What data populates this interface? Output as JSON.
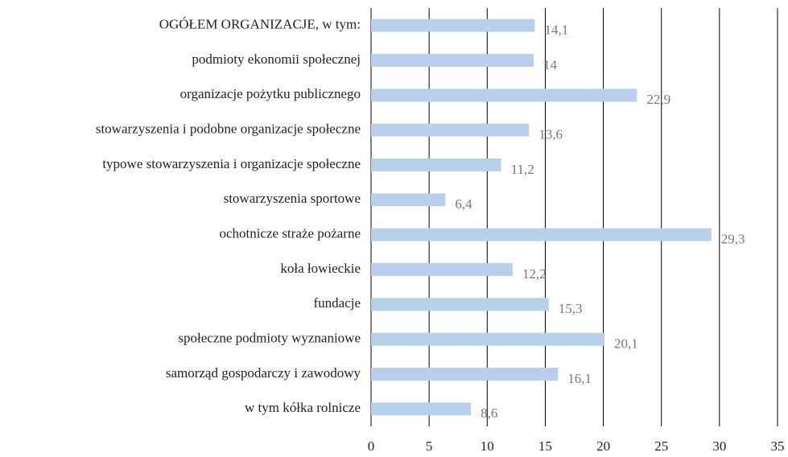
{
  "chart_data": {
    "type": "bar",
    "orientation": "horizontal",
    "categories": [
      "OGÓŁEM ORGANIZACJE, w tym:",
      "podmioty ekonomii społecznej",
      "organizacje pożytku publicznego",
      "stowarzyszenia i podobne organizacje społeczne",
      "typowe stowarzyszenia i organizacje społeczne",
      "stowarzyszenia sportowe",
      "ochotnicze straże pożarne",
      "koła łowieckie",
      "fundacje",
      "społeczne podmioty wyznaniowe",
      "samorząd gospodarczy i zawodowy",
      "w tym kółka rolnicze"
    ],
    "values": [
      14.1,
      14,
      22.9,
      13.6,
      11.2,
      6.4,
      29.3,
      12.2,
      15.3,
      20.1,
      16.1,
      8.6
    ],
    "value_labels": [
      "14,1",
      "14",
      "22,9",
      "13,6",
      "11,2",
      "6,4",
      "29,3",
      "12,2",
      "15,3",
      "20,1",
      "16,1",
      "8,6"
    ],
    "color": "#b8d0ec",
    "xlim": [
      0,
      35
    ],
    "xticks": [
      0,
      5,
      10,
      15,
      20,
      25,
      30,
      35
    ],
    "grid": true
  }
}
